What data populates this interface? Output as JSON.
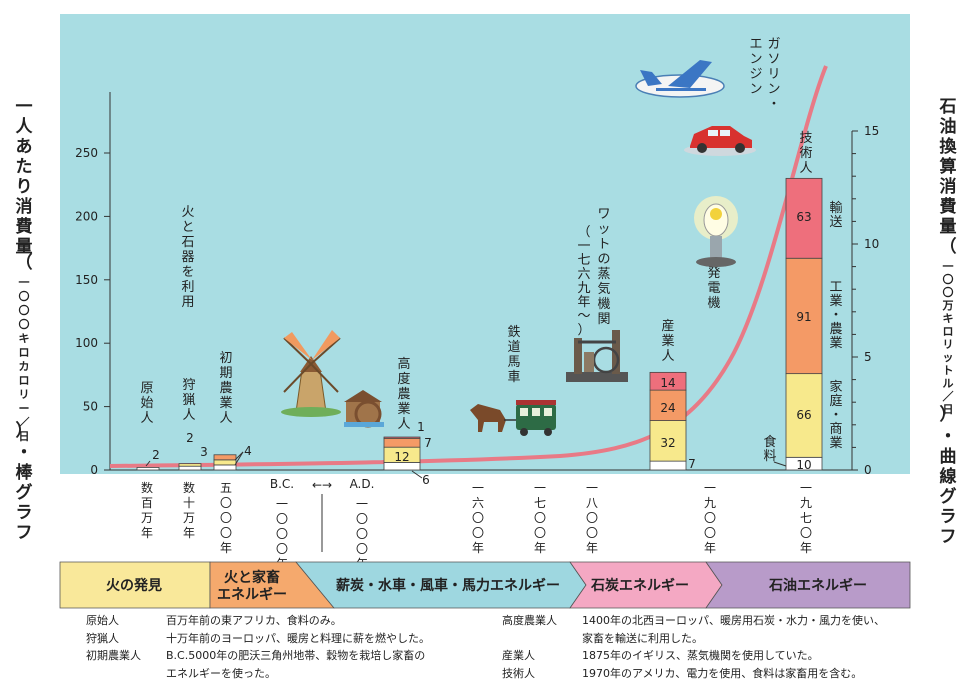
{
  "chart_data": {
    "type": "bar",
    "title": "",
    "left_axis": {
      "label_main": "一人あたり消費量",
      "label_paren_open": "（",
      "label_unit": "一〇〇〇キロカロリー／日",
      "label_paren_close": "）",
      "label_suffix": "・棒グラフ",
      "ticks": [
        "0",
        "50",
        "100",
        "150",
        "200",
        "250"
      ],
      "ylim": [
        0,
        300
      ]
    },
    "right_axis": {
      "label_main": "石油換算消費量",
      "label_paren_open": "（",
      "label_unit": "一〇〇万キロリットル／日",
      "label_paren_close": "）",
      "label_suffix": "・曲線グラフ",
      "ticks": [
        "0",
        "5",
        "10",
        "15"
      ],
      "ylim": [
        0,
        15
      ]
    },
    "x_ticks": [
      "数百万年",
      "数十万年",
      "五〇〇〇年",
      "B.C.",
      "一〇〇〇年",
      "A.D.",
      "一〇〇〇年",
      "一六〇〇年",
      "一七〇〇年",
      "一八〇〇年",
      "一九〇〇年",
      "一九七〇年"
    ],
    "arrow": "←→",
    "segment_categories": [
      "食料",
      "家庭・商業",
      "工業・農業",
      "輸送"
    ],
    "bars": [
      {
        "name": "原始人",
        "segments": [
          2,
          0,
          0,
          0
        ],
        "labels": [
          "2"
        ]
      },
      {
        "name": "狩猟人",
        "segments": [
          3,
          2,
          0,
          0
        ],
        "labels": [
          "3",
          "2"
        ]
      },
      {
        "name": "初期農業人",
        "segments": [
          4,
          4,
          4,
          0
        ],
        "labels": [
          "4"
        ]
      },
      {
        "name": "高度農業人",
        "segments": [
          6,
          12,
          7,
          1
        ],
        "labels": [
          "6",
          "12",
          "7",
          "1"
        ]
      },
      {
        "name": "産業人",
        "segments": [
          7,
          32,
          24,
          14
        ],
        "labels": [
          "7",
          "32",
          "24",
          "14"
        ]
      },
      {
        "name": "技術人",
        "segments": [
          10,
          66,
          91,
          63
        ],
        "labels": [
          "10",
          "66",
          "91",
          "63"
        ]
      }
    ],
    "segment_labels_right": [
      "食料",
      "家庭・商業",
      "工業・農業",
      "輸送"
    ],
    "annotations": [
      "火と石器を利用",
      "鉄道馬車",
      "ワットの蒸気機関",
      "（一七六九年〜）",
      "発電機",
      "ガソリン・エンジン"
    ],
    "curve": {
      "name": "石油換算消費量",
      "color": "#e87a86"
    },
    "colors": {
      "plot_bg": "#a9dde3",
      "food": "#ffffff",
      "home": "#f7e98c",
      "industry": "#f49a66",
      "transport": "#ee6f7c"
    }
  },
  "eras": [
    {
      "label": "火の発見",
      "color": "#f9e89a"
    },
    {
      "label": "火と家畜\nエネルギー",
      "color": "#f5a96d"
    },
    {
      "label": "薪炭・水車・風車・馬力エネルギー",
      "color": "#9ed7e0"
    },
    {
      "label": "石炭エネルギー",
      "color": "#f4a8c3"
    },
    {
      "label": "石油エネルギー",
      "color": "#b89bc9"
    }
  ],
  "notes": [
    {
      "term": "原始人",
      "text": "百万年前の東アフリカ、食料のみ。"
    },
    {
      "term": "狩猟人",
      "text": "十万年前のヨーロッパ、暖房と料理に薪を燃やした。"
    },
    {
      "term": "初期農業人",
      "text": "B.C.5000年の肥沃三角州地帯、穀物を栽培し家畜の"
    },
    {
      "term": "",
      "text": "エネルギーを使った。"
    },
    {
      "term": "高度農業人",
      "text": "1400年の北西ヨーロッパ、暖房用石炭・水力・風力を使い、"
    },
    {
      "term": "",
      "text": "家畜を輸送に利用した。"
    },
    {
      "term": "産業人",
      "text": "1875年のイギリス、蒸気機関を使用していた。"
    },
    {
      "term": "技術人",
      "text": "1970年のアメリカ、電力を使用、食料は家畜用を含む。"
    }
  ]
}
